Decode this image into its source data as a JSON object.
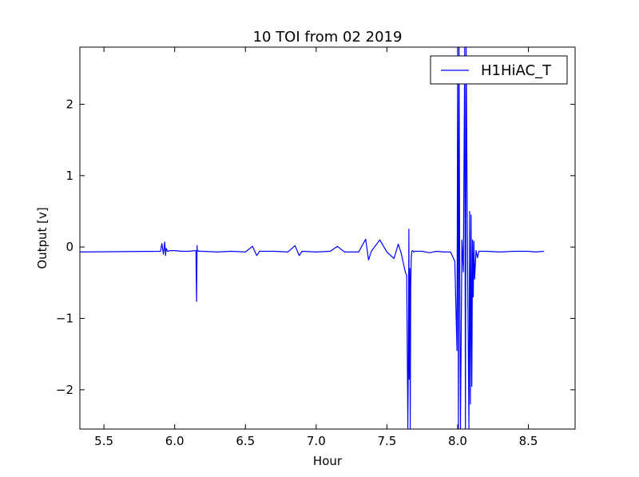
{
  "chart_data": {
    "type": "line",
    "title": "10 TOI from 02 2019",
    "xlabel": "Hour",
    "ylabel": "Output [v]",
    "xlim": [
      5.33,
      8.83
    ],
    "ylim": [
      -2.55,
      2.8
    ],
    "xticks": [
      5.5,
      6.0,
      6.5,
      7.0,
      7.5,
      8.0,
      8.5
    ],
    "xtick_labels": [
      "5.5",
      "6.0",
      "6.5",
      "7.0",
      "7.5",
      "8.0",
      "8.5"
    ],
    "yticks": [
      -2,
      -1,
      0,
      1,
      2
    ],
    "ytick_labels": [
      "−2",
      "−1",
      "0",
      "1",
      "2"
    ],
    "grid": false,
    "legend": {
      "placement": "top-right",
      "entries": [
        "H1HiAC_T"
      ]
    },
    "series": [
      {
        "name": "H1HiAC_T",
        "color": "#0000ff",
        "x": [
          5.33,
          5.9,
          5.91,
          5.92,
          5.93,
          5.935,
          5.94,
          5.95,
          5.97,
          6.0,
          6.05,
          6.1,
          6.15,
          6.155,
          6.158,
          6.16,
          6.165,
          6.17,
          6.2,
          6.3,
          6.4,
          6.5,
          6.55,
          6.58,
          6.6,
          6.7,
          6.8,
          6.85,
          6.88,
          6.9,
          7.0,
          7.1,
          7.15,
          7.2,
          7.3,
          7.35,
          7.37,
          7.39,
          7.45,
          7.5,
          7.55,
          7.58,
          7.6,
          7.63,
          7.64,
          7.648,
          7.652,
          7.655,
          7.658,
          7.662,
          7.665,
          7.668,
          7.672,
          7.676,
          7.68,
          7.69,
          7.7,
          7.75,
          7.8,
          7.85,
          7.9,
          7.95,
          7.98,
          7.995,
          8.0,
          8.005,
          8.01,
          8.015,
          8.02,
          8.03,
          8.04,
          8.05,
          8.055,
          8.06,
          8.07,
          8.08,
          8.085,
          8.09,
          8.095,
          8.1,
          8.105,
          8.11,
          8.115,
          8.12,
          8.13,
          8.14,
          8.15,
          8.2,
          8.3,
          8.4,
          8.5,
          8.55,
          8.61
        ],
        "y": [
          -0.07,
          -0.06,
          0.05,
          -0.1,
          0.07,
          -0.12,
          -0.02,
          -0.06,
          -0.05,
          -0.05,
          -0.06,
          -0.06,
          -0.05,
          -0.76,
          0.02,
          -0.06,
          -0.05,
          -0.06,
          -0.06,
          -0.07,
          -0.06,
          -0.07,
          0.01,
          -0.12,
          -0.06,
          -0.06,
          -0.07,
          0.02,
          -0.12,
          -0.06,
          -0.07,
          -0.06,
          0.01,
          -0.07,
          -0.07,
          0.11,
          -0.18,
          -0.06,
          0.1,
          -0.07,
          -0.16,
          0.04,
          -0.08,
          -0.35,
          -0.4,
          -2.55,
          -1.5,
          0.25,
          -1.85,
          -0.3,
          -2.55,
          -0.55,
          -0.15,
          -0.06,
          -0.05,
          -0.07,
          -0.06,
          -0.06,
          -0.08,
          -0.06,
          -0.07,
          -0.07,
          -0.2,
          -1.45,
          2.8,
          -2.55,
          2.8,
          -0.45,
          -2.55,
          0.1,
          -0.35,
          2.8,
          -2.55,
          2.8,
          -0.25,
          -2.55,
          0.5,
          -2.2,
          0.45,
          -1.95,
          0.1,
          -0.7,
          0.08,
          -0.45,
          -0.05,
          -0.15,
          -0.06,
          -0.06,
          -0.07,
          -0.06,
          -0.06,
          -0.07,
          -0.06
        ]
      }
    ]
  }
}
